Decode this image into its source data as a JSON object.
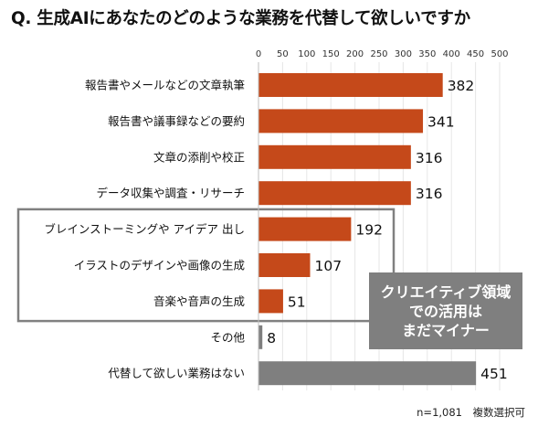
{
  "title": "Q. 生成AIにあなたのどのような業務を代替して欲しいですか",
  "footnote": "n=1,081　複数選択可",
  "callout": {
    "lines": [
      "クリエイティブ領域",
      "での活用は",
      "まだマイナー"
    ]
  },
  "colors": {
    "orange": "#c5491a",
    "gray": "#7f7f7f",
    "box_border": "#808080"
  },
  "chart_data": {
    "type": "bar",
    "orientation": "horizontal",
    "xlim": [
      0,
      500
    ],
    "ticks": [
      0,
      50,
      100,
      150,
      200,
      250,
      300,
      350,
      400,
      450,
      500
    ],
    "categories": [
      "報告書やメールなどの文章執筆",
      "報告書や議事録などの要約",
      "文章の添削や校正",
      "データ収集や調査・リサーチ",
      "ブレインストーミングや アイデア 出し",
      "イラストのデザインや画像の生成",
      "音楽や音声の生成",
      "その他",
      "代替して欲しい業務はない"
    ],
    "values": [
      382,
      341,
      316,
      316,
      192,
      107,
      51,
      8,
      451
    ],
    "bar_colors": [
      "orange",
      "orange",
      "orange",
      "orange",
      "orange",
      "orange",
      "orange",
      "gray",
      "gray"
    ],
    "highlighted_categories": [
      4,
      5,
      6
    ]
  }
}
